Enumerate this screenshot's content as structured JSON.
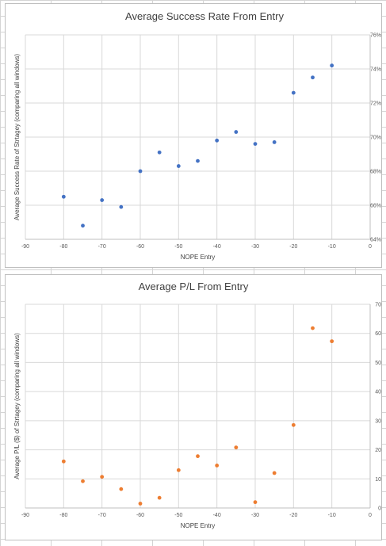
{
  "chart_data": [
    {
      "type": "scatter",
      "title": "Average Success Rate From Entry",
      "xlabel": "NOPE Entry",
      "ylabel": "Average Success Rate of Strtagey (comparing all windows)",
      "xlim": [
        -90,
        0
      ],
      "ylim": [
        64,
        76
      ],
      "xticks": [
        -90,
        -80,
        -70,
        -60,
        -50,
        -40,
        -30,
        -20,
        -10,
        0
      ],
      "yticks": [
        64,
        66,
        68,
        70,
        72,
        74,
        76
      ],
      "xtick_labels": [
        "-90",
        "-80",
        "-70",
        "-60",
        "-50",
        "-40",
        "-30",
        "-20",
        "-10",
        "0"
      ],
      "ytick_labels": [
        "64%",
        "66%",
        "68%",
        "70%",
        "72%",
        "74%",
        "76%"
      ],
      "y_axis_position": "right",
      "grid": true,
      "marker_color": "#4472c4",
      "x": [
        -80,
        -75,
        -70,
        -65,
        -60,
        -55,
        -50,
        -45,
        -40,
        -35,
        -30,
        -25,
        -20,
        -15,
        -10
      ],
      "y": [
        66.5,
        64.8,
        66.3,
        65.9,
        68.0,
        69.1,
        68.3,
        68.6,
        69.8,
        70.3,
        69.6,
        69.7,
        72.6,
        73.5,
        74.2
      ]
    },
    {
      "type": "scatter",
      "title": "Average P/L From Entry",
      "xlabel": "NOPE Entry",
      "ylabel": "Average P/L ($) of Strtagey (comparing all windows)",
      "xlim": [
        -90,
        0
      ],
      "ylim": [
        0,
        70
      ],
      "xticks": [
        -90,
        -80,
        -70,
        -60,
        -50,
        -40,
        -30,
        -20,
        -10,
        0
      ],
      "yticks": [
        0,
        10,
        20,
        30,
        40,
        50,
        60,
        70
      ],
      "xtick_labels": [
        "-90",
        "-80",
        "-70",
        "-60",
        "-50",
        "-40",
        "-30",
        "-20",
        "-10",
        "0"
      ],
      "ytick_labels": [
        "0",
        "10",
        "20",
        "30",
        "40",
        "50",
        "60",
        "70"
      ],
      "y_axis_position": "right",
      "grid": true,
      "marker_color": "#ed7d31",
      "x": [
        -80,
        -75,
        -70,
        -65,
        -60,
        -55,
        -50,
        -45,
        -40,
        -35,
        -30,
        -25,
        -20,
        -15,
        -10
      ],
      "y": [
        16.0,
        9.2,
        10.7,
        6.5,
        1.5,
        3.5,
        13.0,
        17.8,
        14.6,
        20.8,
        2.0,
        12.0,
        28.5,
        61.8,
        57.3
      ]
    }
  ]
}
